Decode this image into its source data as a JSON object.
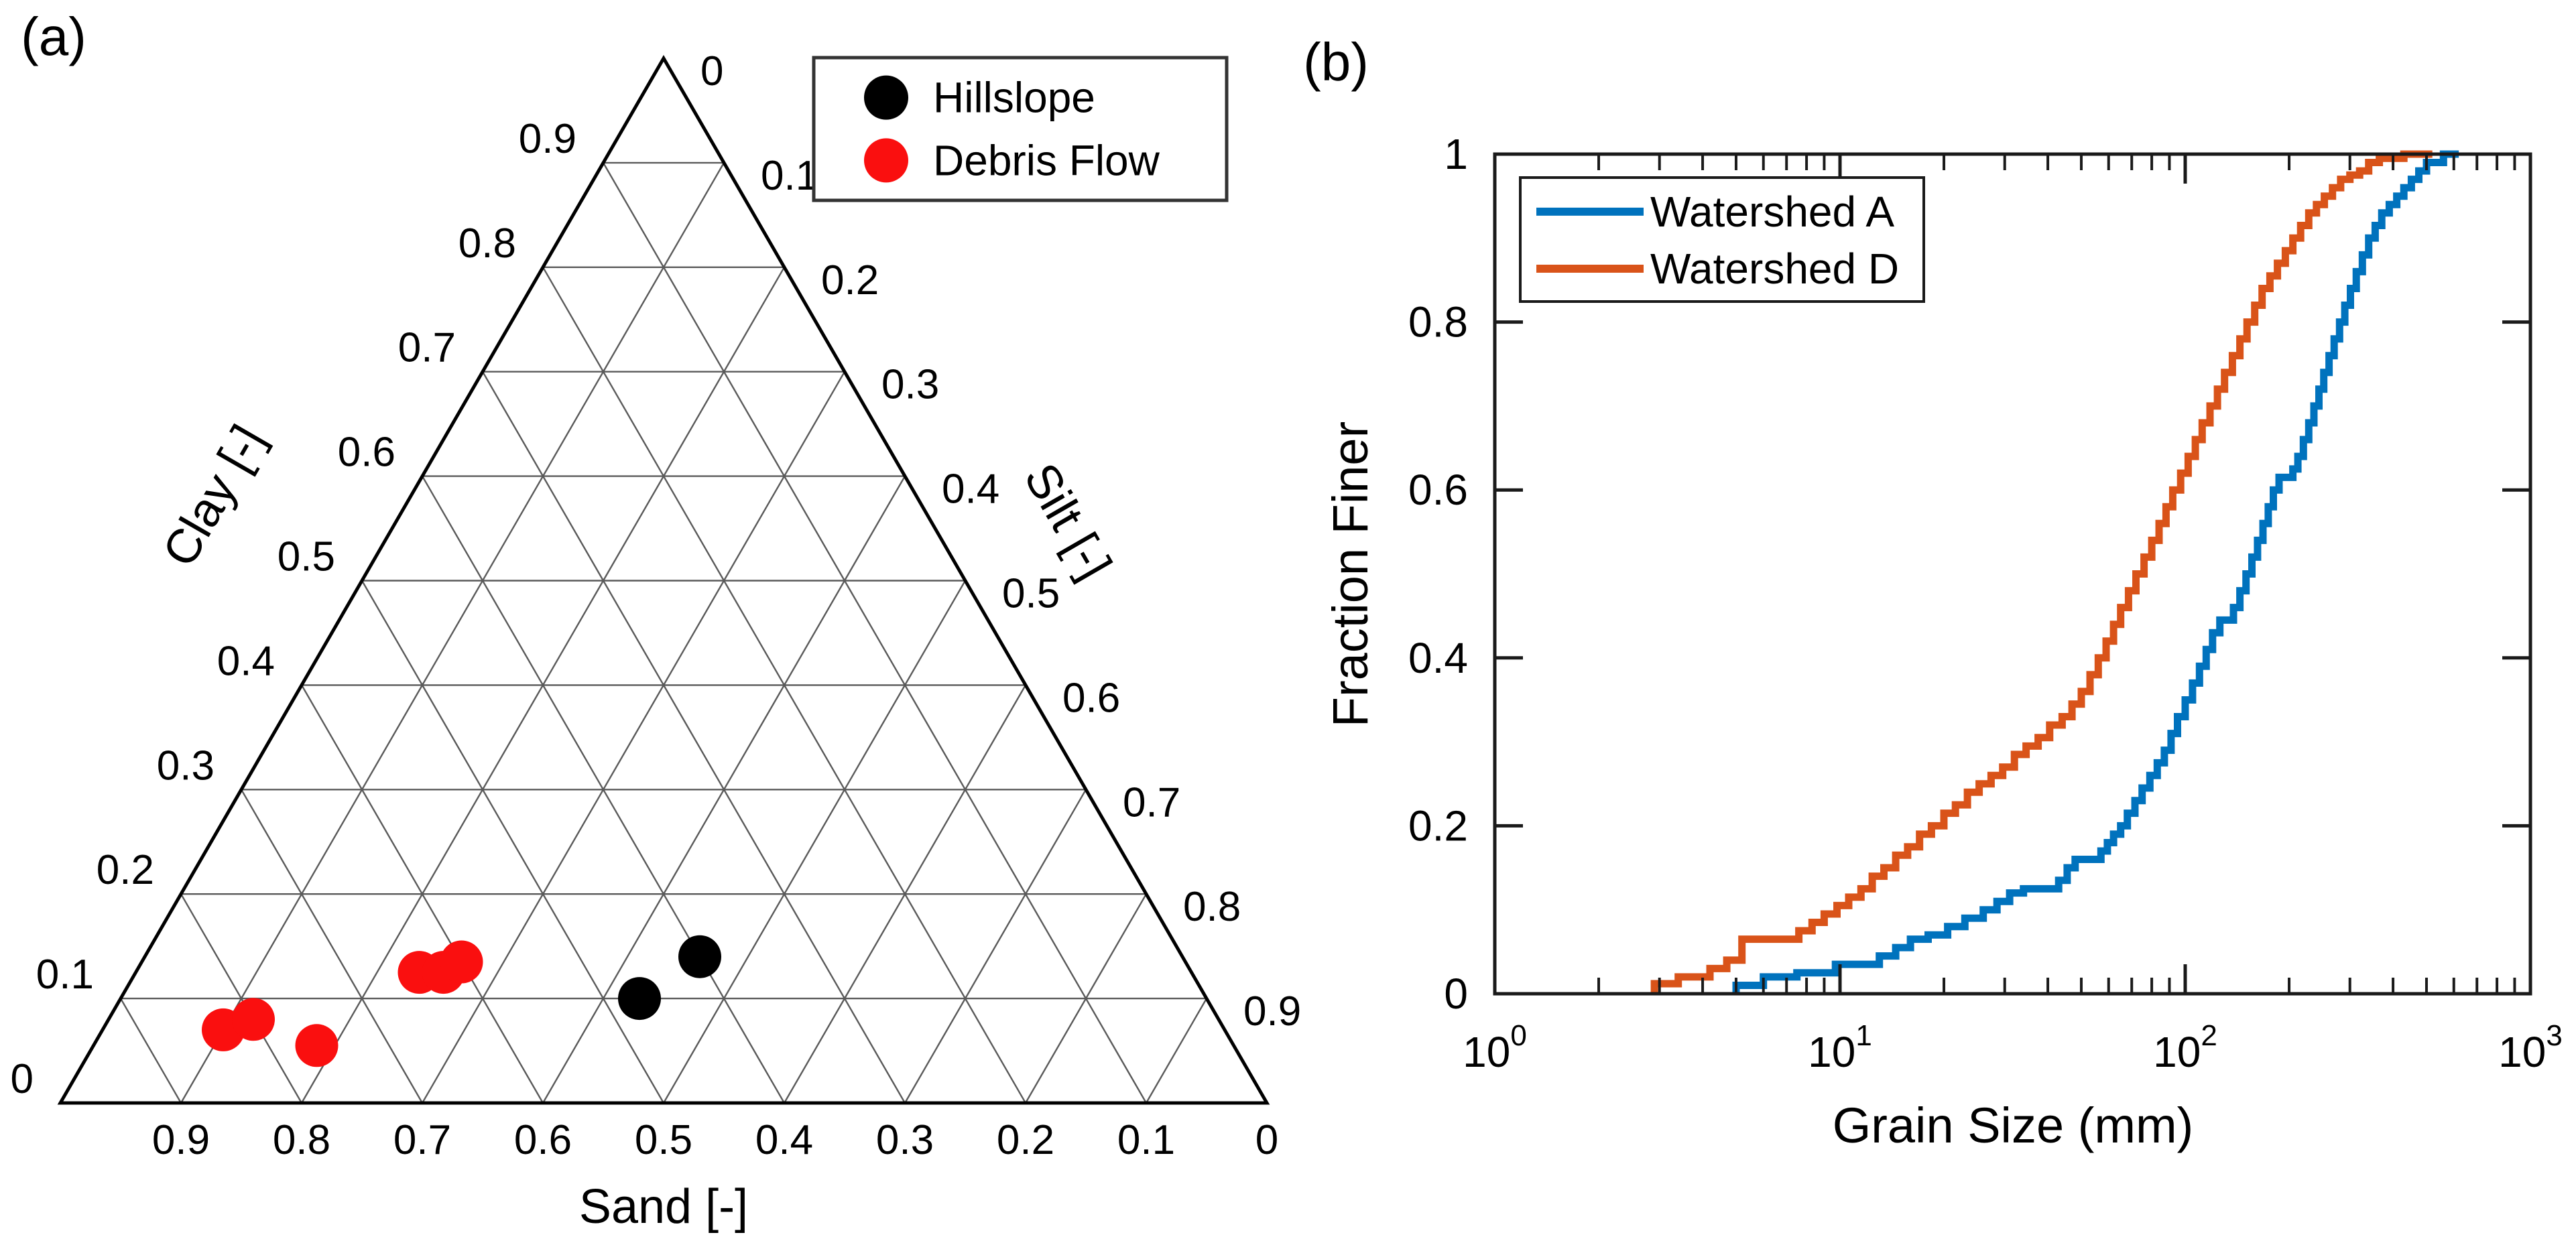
{
  "figure": {
    "background": "#ffffff",
    "panel_a_label": "(a)",
    "panel_b_label": "(b)"
  },
  "chart_data": [
    {
      "type": "scatter",
      "subtype": "ternary",
      "panel": "a",
      "axes": {
        "clay_label": "Clay [-]",
        "silt_label": "Silt [-]",
        "sand_label": "Sand [-]",
        "tick_values": [
          0,
          0.1,
          0.2,
          0.3,
          0.4,
          0.5,
          0.6,
          0.7,
          0.8,
          0.9
        ],
        "grid_interval": 0.1
      },
      "legend": {
        "position": "top-right",
        "entries": [
          {
            "label": "Hillslope",
            "color": "#000000",
            "marker": "circle"
          },
          {
            "label": "Debris Flow",
            "color": "#fa0f0f",
            "marker": "circle"
          }
        ]
      },
      "series": [
        {
          "name": "Hillslope",
          "color": "#000000",
          "points": [
            {
              "sand": 0.47,
              "silt": 0.43,
              "clay": 0.1
            },
            {
              "sand": 0.4,
              "silt": 0.46,
              "clay": 0.14
            }
          ]
        },
        {
          "name": "Debris Flow",
          "color": "#fa0f0f",
          "points": [
            {
              "sand": 0.83,
              "silt": 0.1,
              "clay": 0.07
            },
            {
              "sand": 0.8,
              "silt": 0.12,
              "clay": 0.08
            },
            {
              "sand": 0.76,
              "silt": 0.185,
              "clay": 0.055
            },
            {
              "sand": 0.64,
              "silt": 0.235,
              "clay": 0.125
            },
            {
              "sand": 0.62,
              "silt": 0.255,
              "clay": 0.125
            },
            {
              "sand": 0.6,
              "silt": 0.265,
              "clay": 0.135
            }
          ]
        }
      ]
    },
    {
      "type": "line",
      "subtype": "step-cdf",
      "panel": "b",
      "xlabel": "Grain Size (mm)",
      "ylabel": "Fraction Finer",
      "xscale": "log",
      "xlim": [
        1,
        1000
      ],
      "ylim": [
        0,
        1
      ],
      "xticks": [
        {
          "base": "10",
          "exp": "0"
        },
        {
          "base": "10",
          "exp": "1"
        },
        {
          "base": "10",
          "exp": "2"
        },
        {
          "base": "10",
          "exp": "3"
        }
      ],
      "yticks": [
        0,
        0.2,
        0.4,
        0.6,
        0.8,
        1
      ],
      "ytick_labels": [
        "0",
        "0.2",
        "0.4",
        "0.6",
        "0.8",
        "1"
      ],
      "grid": false,
      "legend": {
        "position": "top-left",
        "entries": [
          {
            "label": "Watershed A",
            "color": "#0072bd"
          },
          {
            "label": "Watershed D",
            "color": "#d95319"
          }
        ]
      },
      "series": [
        {
          "name": "Watershed A",
          "color": "#0072bd",
          "points": [
            [
              5.0,
              0.01
            ],
            [
              6.0,
              0.02
            ],
            [
              7.5,
              0.025
            ],
            [
              9.7,
              0.035
            ],
            [
              13,
              0.045
            ],
            [
              14.5,
              0.055
            ],
            [
              16,
              0.065
            ],
            [
              18,
              0.07
            ],
            [
              20.5,
              0.08
            ],
            [
              23,
              0.09
            ],
            [
              26,
              0.1
            ],
            [
              28.5,
              0.11
            ],
            [
              31,
              0.12
            ],
            [
              34,
              0.125
            ],
            [
              43,
              0.135
            ],
            [
              45.5,
              0.15
            ],
            [
              48,
              0.16
            ],
            [
              57,
              0.17
            ],
            [
              59.5,
              0.18
            ],
            [
              62,
              0.19
            ],
            [
              65,
              0.2
            ],
            [
              68,
              0.215
            ],
            [
              71.5,
              0.23
            ],
            [
              75,
              0.245
            ],
            [
              79,
              0.26
            ],
            [
              83,
              0.275
            ],
            [
              87,
              0.29
            ],
            [
              91,
              0.31
            ],
            [
              95,
              0.33
            ],
            [
              100,
              0.35
            ],
            [
              105,
              0.37
            ],
            [
              110,
              0.39
            ],
            [
              115,
              0.41
            ],
            [
              120,
              0.43
            ],
            [
              126,
              0.445
            ],
            [
              138,
              0.46
            ],
            [
              144,
              0.48
            ],
            [
              150,
              0.5
            ],
            [
              156,
              0.52
            ],
            [
              162,
              0.54
            ],
            [
              168,
              0.56
            ],
            [
              174,
              0.58
            ],
            [
              180,
              0.6
            ],
            [
              187,
              0.615
            ],
            [
              205,
              0.625
            ],
            [
              212,
              0.64
            ],
            [
              220,
              0.66
            ],
            [
              228,
              0.68
            ],
            [
              236,
              0.7
            ],
            [
              244,
              0.72
            ],
            [
              252,
              0.74
            ],
            [
              261,
              0.76
            ],
            [
              270,
              0.78
            ],
            [
              280,
              0.8
            ],
            [
              290,
              0.82
            ],
            [
              301,
              0.84
            ],
            [
              313,
              0.86
            ],
            [
              326,
              0.88
            ],
            [
              340,
              0.9
            ],
            [
              355,
              0.915
            ],
            [
              371,
              0.93
            ],
            [
              390,
              0.94
            ],
            [
              410,
              0.95
            ],
            [
              430,
              0.96
            ],
            [
              452,
              0.97
            ],
            [
              475,
              0.98
            ],
            [
              500,
              0.99
            ],
            [
              560,
              1.0
            ],
            [
              620,
              1.0
            ]
          ]
        },
        {
          "name": "Watershed D",
          "color": "#d95319",
          "points": [
            [
              2.9,
              0.012
            ],
            [
              3.4,
              0.02
            ],
            [
              4.2,
              0.03
            ],
            [
              4.7,
              0.04
            ],
            [
              5.2,
              0.065
            ],
            [
              7.6,
              0.075
            ],
            [
              8.3,
              0.085
            ],
            [
              9.0,
              0.095
            ],
            [
              9.8,
              0.105
            ],
            [
              10.6,
              0.115
            ],
            [
              11.5,
              0.125
            ],
            [
              12.4,
              0.14
            ],
            [
              13.4,
              0.15
            ],
            [
              14.5,
              0.165
            ],
            [
              15.7,
              0.175
            ],
            [
              17,
              0.19
            ],
            [
              18.4,
              0.2
            ],
            [
              20,
              0.215
            ],
            [
              21.6,
              0.225
            ],
            [
              23.4,
              0.24
            ],
            [
              25.3,
              0.25
            ],
            [
              27.4,
              0.26
            ],
            [
              29.6,
              0.27
            ],
            [
              32,
              0.285
            ],
            [
              34.6,
              0.295
            ],
            [
              37.5,
              0.305
            ],
            [
              40.5,
              0.32
            ],
            [
              44,
              0.33
            ],
            [
              47,
              0.345
            ],
            [
              50,
              0.36
            ],
            [
              53,
              0.38
            ],
            [
              56,
              0.4
            ],
            [
              59,
              0.42
            ],
            [
              62,
              0.44
            ],
            [
              65,
              0.46
            ],
            [
              68.5,
              0.48
            ],
            [
              72,
              0.5
            ],
            [
              76,
              0.52
            ],
            [
              80,
              0.54
            ],
            [
              84,
              0.56
            ],
            [
              88,
              0.58
            ],
            [
              92,
              0.6
            ],
            [
              97,
              0.62
            ],
            [
              102,
              0.64
            ],
            [
              107,
              0.66
            ],
            [
              112,
              0.68
            ],
            [
              118,
              0.7
            ],
            [
              124,
              0.72
            ],
            [
              130,
              0.74
            ],
            [
              137,
              0.76
            ],
            [
              144,
              0.78
            ],
            [
              151,
              0.8
            ],
            [
              159,
              0.82
            ],
            [
              167,
              0.84
            ],
            [
              176,
              0.855
            ],
            [
              185,
              0.87
            ],
            [
              195,
              0.885
            ],
            [
              205,
              0.9
            ],
            [
              216,
              0.915
            ],
            [
              228,
              0.93
            ],
            [
              240,
              0.94
            ],
            [
              253,
              0.95
            ],
            [
              267,
              0.96
            ],
            [
              282,
              0.97
            ],
            [
              300,
              0.975
            ],
            [
              320,
              0.98
            ],
            [
              340,
              0.99
            ],
            [
              365,
              0.995
            ],
            [
              430,
              1.0
            ],
            [
              520,
              1.0
            ]
          ]
        }
      ]
    }
  ]
}
